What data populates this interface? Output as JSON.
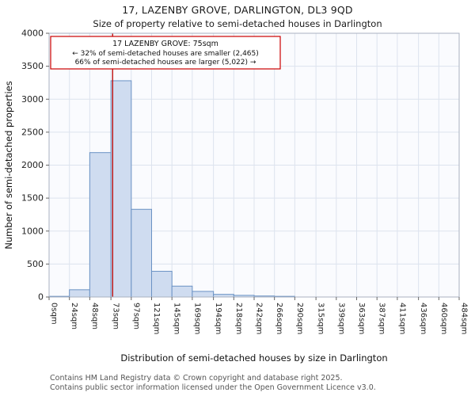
{
  "chart_data": {
    "type": "bar",
    "title": "17, LAZENBY GROVE, DARLINGTON, DL3 9QD",
    "subtitle": "Size of property relative to semi-detached houses in Darlington",
    "xlabel": "Distribution of semi-detached houses by size in Darlington",
    "ylabel": "Number of semi-detached properties",
    "ylim": [
      0,
      4000
    ],
    "y_ticks": [
      0,
      500,
      1000,
      1500,
      2000,
      2500,
      3000,
      3500,
      4000
    ],
    "bin_edges_sqm": [
      0,
      24,
      48,
      73,
      97,
      121,
      145,
      169,
      194,
      218,
      242,
      266,
      290,
      315,
      339,
      363,
      387,
      411,
      436,
      460,
      484
    ],
    "x_tick_labels": [
      "0sqm",
      "24sqm",
      "48sqm",
      "73sqm",
      "97sqm",
      "121sqm",
      "145sqm",
      "169sqm",
      "194sqm",
      "218sqm",
      "242sqm",
      "266sqm",
      "290sqm",
      "315sqm",
      "339sqm",
      "363sqm",
      "387sqm",
      "411sqm",
      "436sqm",
      "460sqm",
      "484sqm"
    ],
    "values": [
      10,
      110,
      2190,
      3280,
      1330,
      390,
      165,
      85,
      40,
      25,
      15,
      10,
      0,
      0,
      0,
      0,
      0,
      0,
      0,
      0
    ],
    "grid": true,
    "marker": {
      "value_sqm": 75
    },
    "annotation": {
      "lines": [
        "17 LAZENBY GROVE: 75sqm",
        "← 32% of semi-detached houses are smaller (2,465)",
        "66% of semi-detached houses are larger (5,022) →"
      ],
      "border_color": "#cc0000"
    },
    "colors": {
      "bar_fill": "#cfdcf0",
      "bar_stroke": "#6a92c4",
      "grid": "#dde3ee",
      "plot_bg": "#fafbfe",
      "axis": "#aab2c0",
      "marker_line": "#bb0000",
      "tick": "#666666",
      "text": "#222222"
    }
  },
  "footer": {
    "line1": "Contains HM Land Registry data © Crown copyright and database right 2025.",
    "line2": "Contains public sector information licensed under the Open Government Licence v3.0."
  }
}
